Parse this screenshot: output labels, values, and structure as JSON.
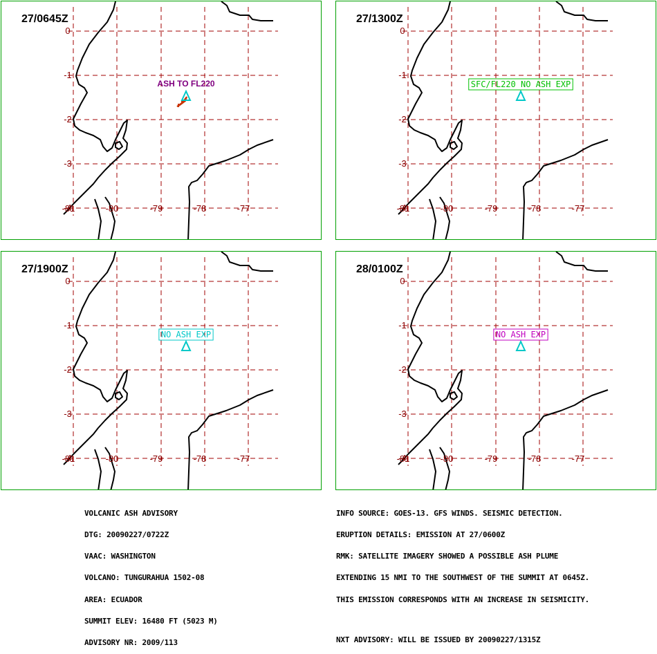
{
  "panels": [
    {
      "title": "27/0645Z",
      "label": "ASH TO FL220",
      "label_color": "#800080",
      "label_boxed": false,
      "show_ash": true
    },
    {
      "title": "27/1300Z",
      "label": "SFC/FL220 NO ASH EXP",
      "label_color": "#00c000",
      "label_boxed": true,
      "show_ash": false
    },
    {
      "title": "27/1900Z",
      "label": "NO ASH EXP",
      "label_color": "#00c8c8",
      "label_boxed": true,
      "show_ash": false
    },
    {
      "title": "28/0100Z",
      "label": "NO ASH EXP",
      "label_color": "#c000c0",
      "label_boxed": true,
      "show_ash": false
    }
  ],
  "map": {
    "lat_labels": [
      "0",
      "-1",
      "-2",
      "-3",
      "-4"
    ],
    "lon_labels": [
      "-81",
      "-80",
      "-79",
      "-78",
      "-77"
    ],
    "volcano_marker_color": "#00c8c8",
    "ash_color": "#c83200"
  },
  "footer_left": [
    "VOLCANIC ASH ADVISORY",
    "DTG: 20090227/0722Z",
    "VAAC: WASHINGTON",
    "VOLCANO: TUNGURAHUA 1502-08",
    "AREA: ECUADOR",
    "SUMMIT ELEV: 16480 FT (5023 M)",
    "ADVISORY NR: 2009/113"
  ],
  "footer_right": [
    "INFO SOURCE: GOES-13. GFS WINDS. SEISMIC DETECTION.",
    "ERUPTION DETAILS: EMISSION AT 27/0600Z",
    "RMK: SATELLITE IMAGERY SHOWED A POSSIBLE ASH PLUME",
    "EXTENDING 15 NMI TO THE SOUTHWEST OF THE SUMMIT AT 0645Z.",
    "THIS EMISSION CORRESPONDS WITH AN INCREASE IN SEISMICITY."
  ],
  "footer_right_last": "NXT ADVISORY: WILL BE ISSUED BY 20090227/1315Z"
}
